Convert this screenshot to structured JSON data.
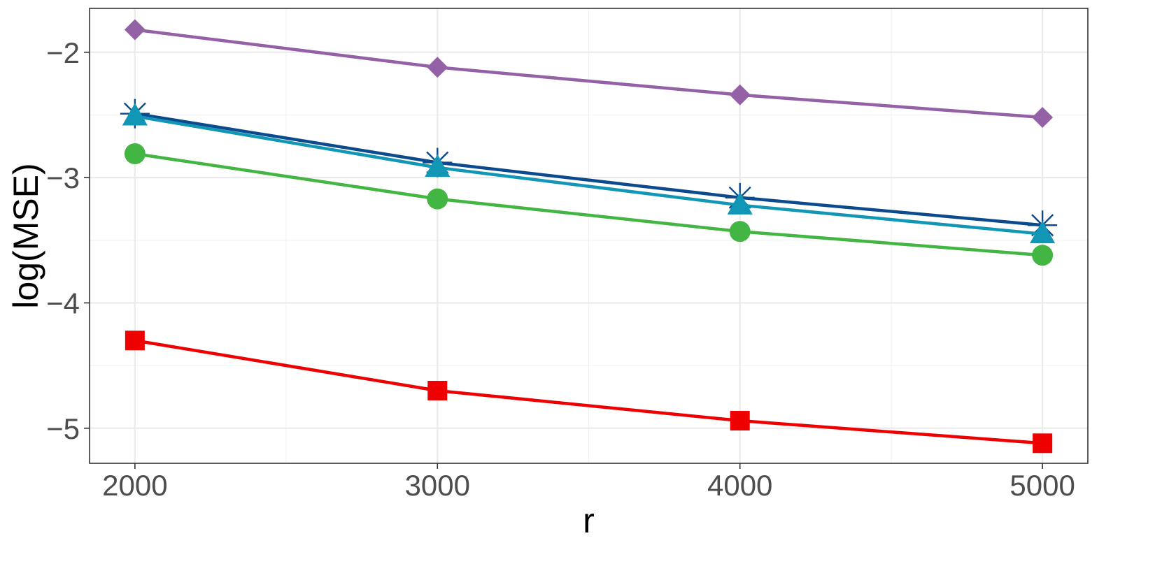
{
  "chart_data": {
    "type": "line",
    "title": "",
    "xlabel": "r",
    "ylabel": "log(MSE)",
    "x": [
      2000,
      3000,
      4000,
      5000
    ],
    "xlim": [
      1850,
      5150
    ],
    "ylim": [
      -5.28,
      -1.65
    ],
    "x_ticks": [
      2000,
      3000,
      4000,
      5000
    ],
    "x_tick_labels": [
      "2000",
      "3000",
      "4000",
      "5000"
    ],
    "y_ticks": [
      -5,
      -4,
      -3,
      -2
    ],
    "y_tick_labels": [
      "−5",
      "−4",
      "−3",
      "−2"
    ],
    "x_minor": [
      2500,
      3500,
      4500
    ],
    "y_minor": [
      -4.5,
      -3.5,
      -2.5
    ],
    "grid": true,
    "legend": "none",
    "series": [
      {
        "values": [
          -1.82,
          -2.12,
          -2.34,
          -2.52
        ],
        "color": "#9460a6",
        "marker": "diamond"
      },
      {
        "values": [
          -2.49,
          -2.88,
          -3.16,
          -3.38
        ],
        "color": "#0b4a8c",
        "marker": "asterisk"
      },
      {
        "values": [
          -2.51,
          -2.92,
          -3.22,
          -3.45
        ],
        "color": "#1197b5",
        "marker": "triangle"
      },
      {
        "values": [
          -2.81,
          -3.17,
          -3.43,
          -3.62
        ],
        "color": "#43b543",
        "marker": "circle"
      },
      {
        "values": [
          -4.3,
          -4.7,
          -4.94,
          -5.12
        ],
        "color": "#ee0000",
        "marker": "square"
      }
    ]
  }
}
